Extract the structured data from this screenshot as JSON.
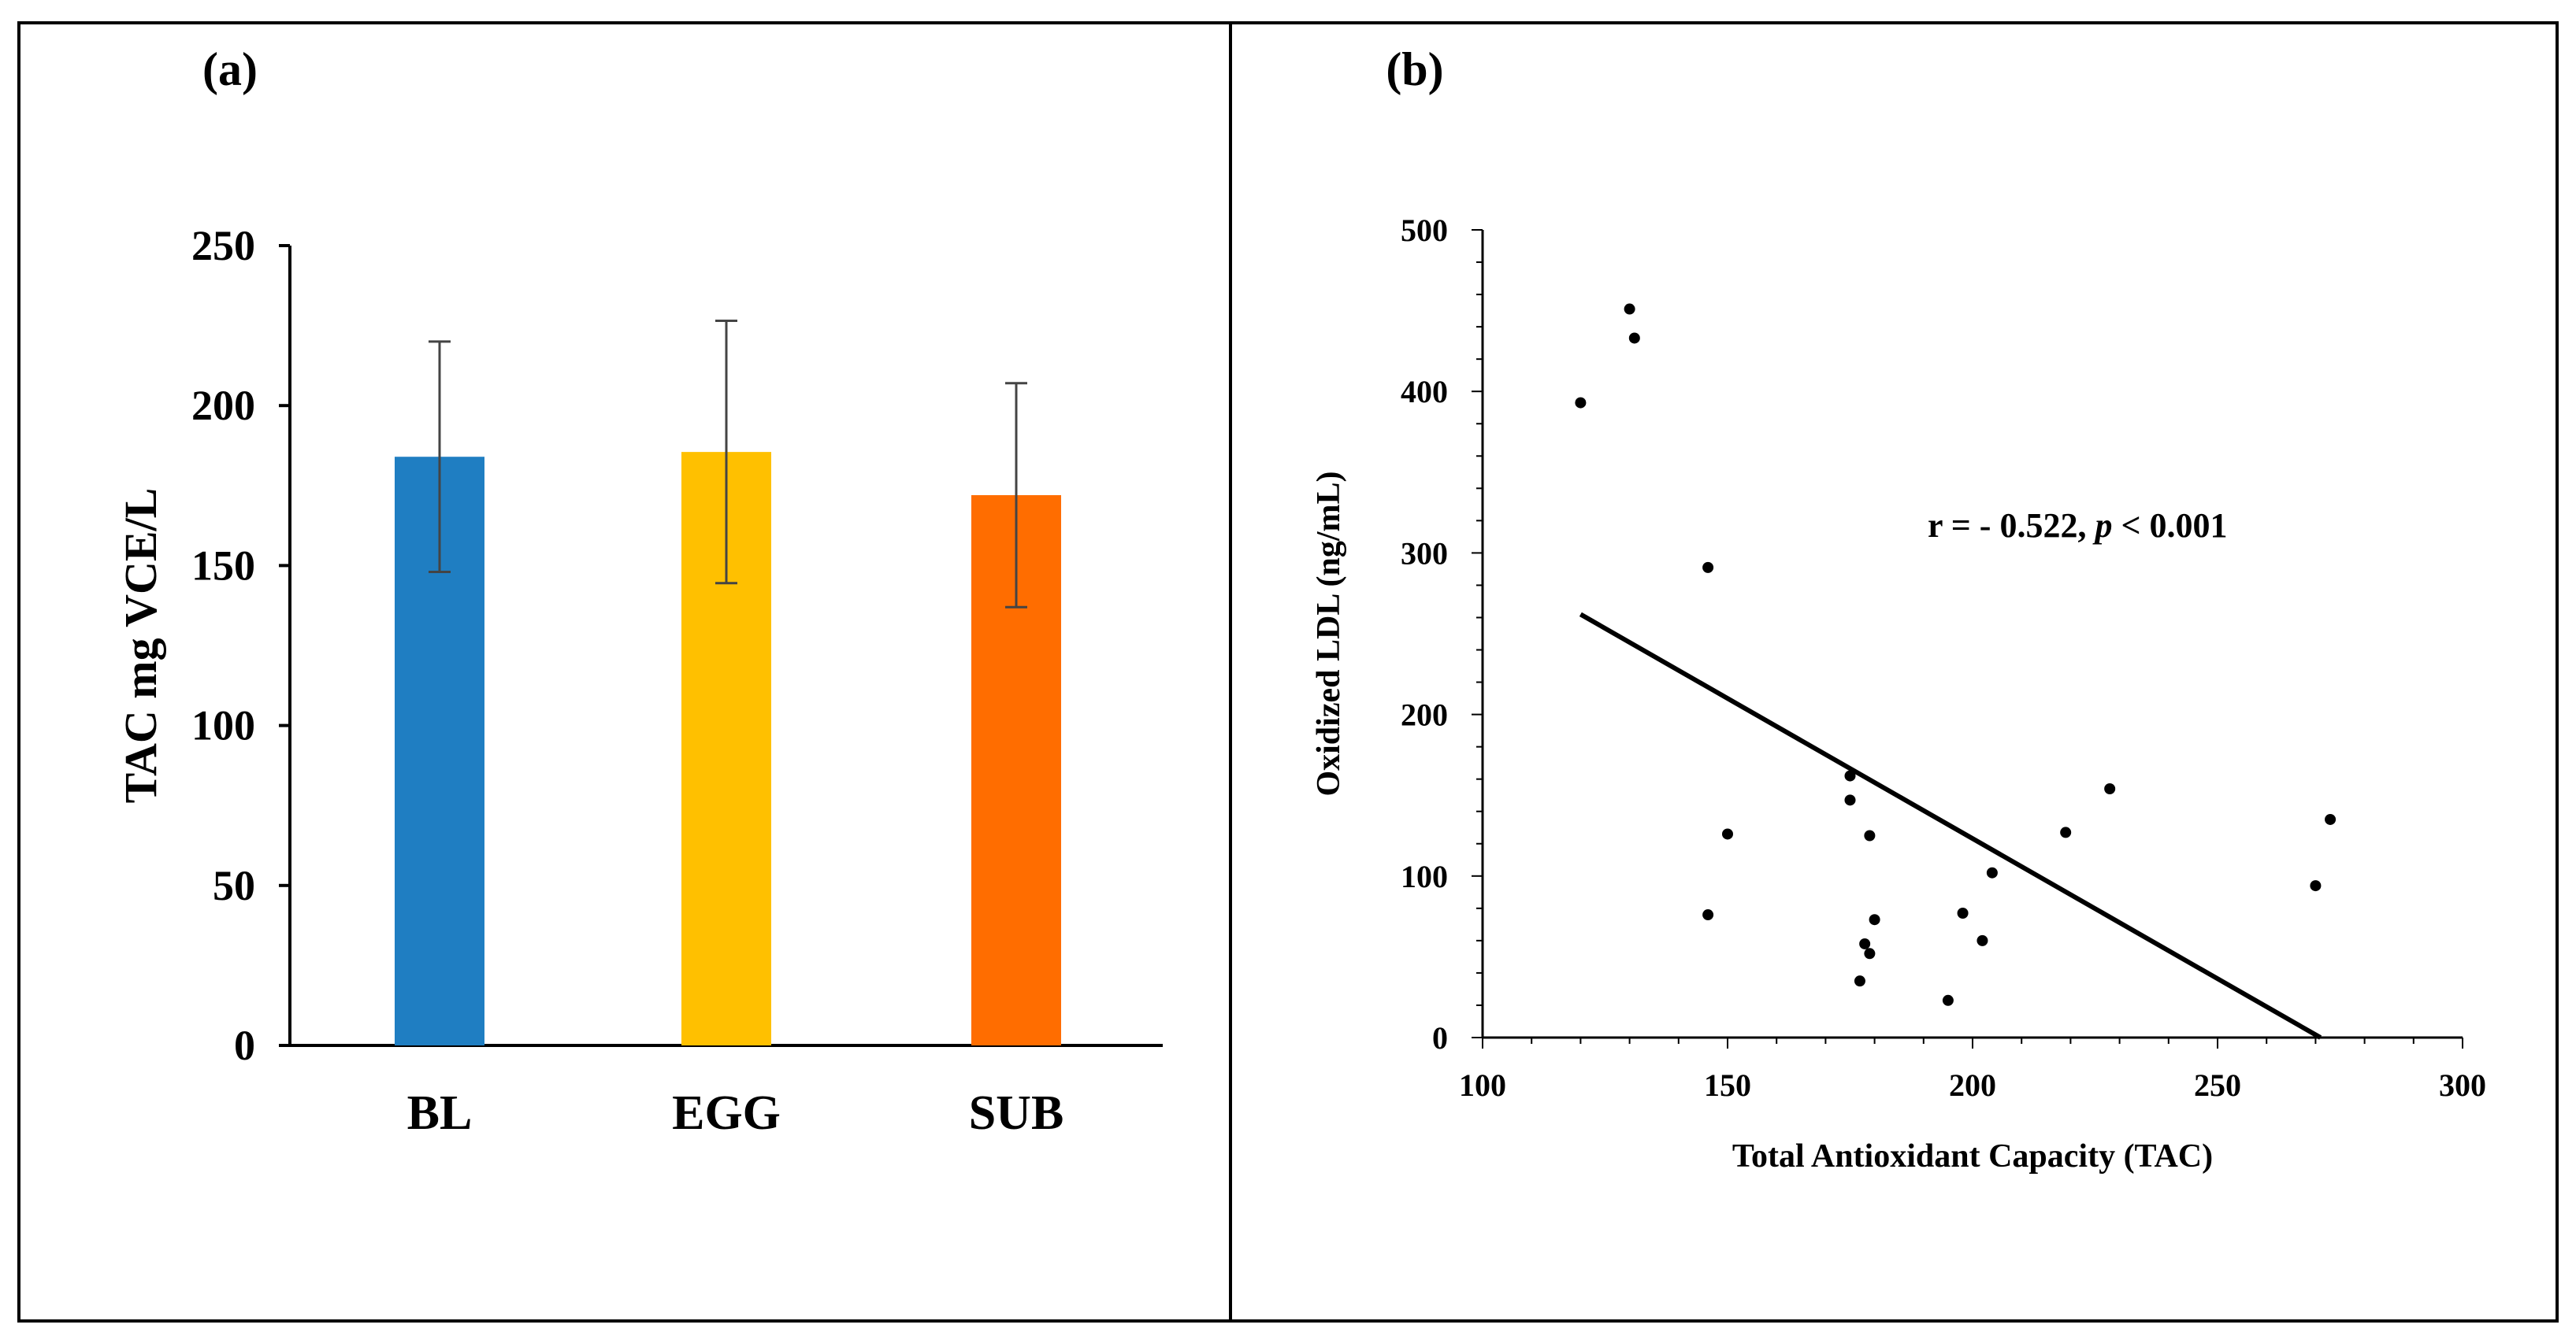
{
  "chart_data": [
    {
      "panel": "(a)",
      "type": "bar",
      "title": "",
      "xlabel": "",
      "ylabel": "TAC mg VCE/L",
      "ylim": [
        0,
        250
      ],
      "yticks": [
        0,
        50,
        100,
        150,
        200,
        250
      ],
      "categories": [
        "BL",
        "EGG",
        "SUB"
      ],
      "values": [
        184,
        185.5,
        172
      ],
      "error": [
        36,
        41,
        35
      ],
      "colors": [
        "#1F7EC2",
        "#FFC000",
        "#FF6D00"
      ]
    },
    {
      "panel": "(b)",
      "type": "scatter",
      "title": "",
      "xlabel": "Total Antioxidant Capacity (TAC)",
      "ylabel": "Oxidized LDL (ng/mL)",
      "xlim": [
        100,
        300
      ],
      "ylim": [
        0,
        500
      ],
      "xticks": [
        100,
        150,
        200,
        250,
        300
      ],
      "yticks": [
        0,
        100,
        200,
        300,
        400,
        500
      ],
      "points": [
        [
          120,
          393
        ],
        [
          130,
          451
        ],
        [
          131,
          433
        ],
        [
          146,
          291
        ],
        [
          146,
          76
        ],
        [
          150,
          126
        ],
        [
          175,
          162
        ],
        [
          175,
          147
        ],
        [
          177,
          35
        ],
        [
          178,
          58
        ],
        [
          179,
          125
        ],
        [
          179,
          52
        ],
        [
          180,
          73
        ],
        [
          195,
          23
        ],
        [
          198,
          77
        ],
        [
          202,
          60
        ],
        [
          204,
          102
        ],
        [
          219,
          127
        ],
        [
          228,
          154
        ],
        [
          270,
          94
        ],
        [
          273,
          135
        ]
      ],
      "trendline": [
        [
          120,
          262
        ],
        [
          271,
          0
        ]
      ],
      "annotation": {
        "prefix": "r = - 0.522, ",
        "italic": "p",
        "suffix": " < 0.001"
      }
    }
  ]
}
